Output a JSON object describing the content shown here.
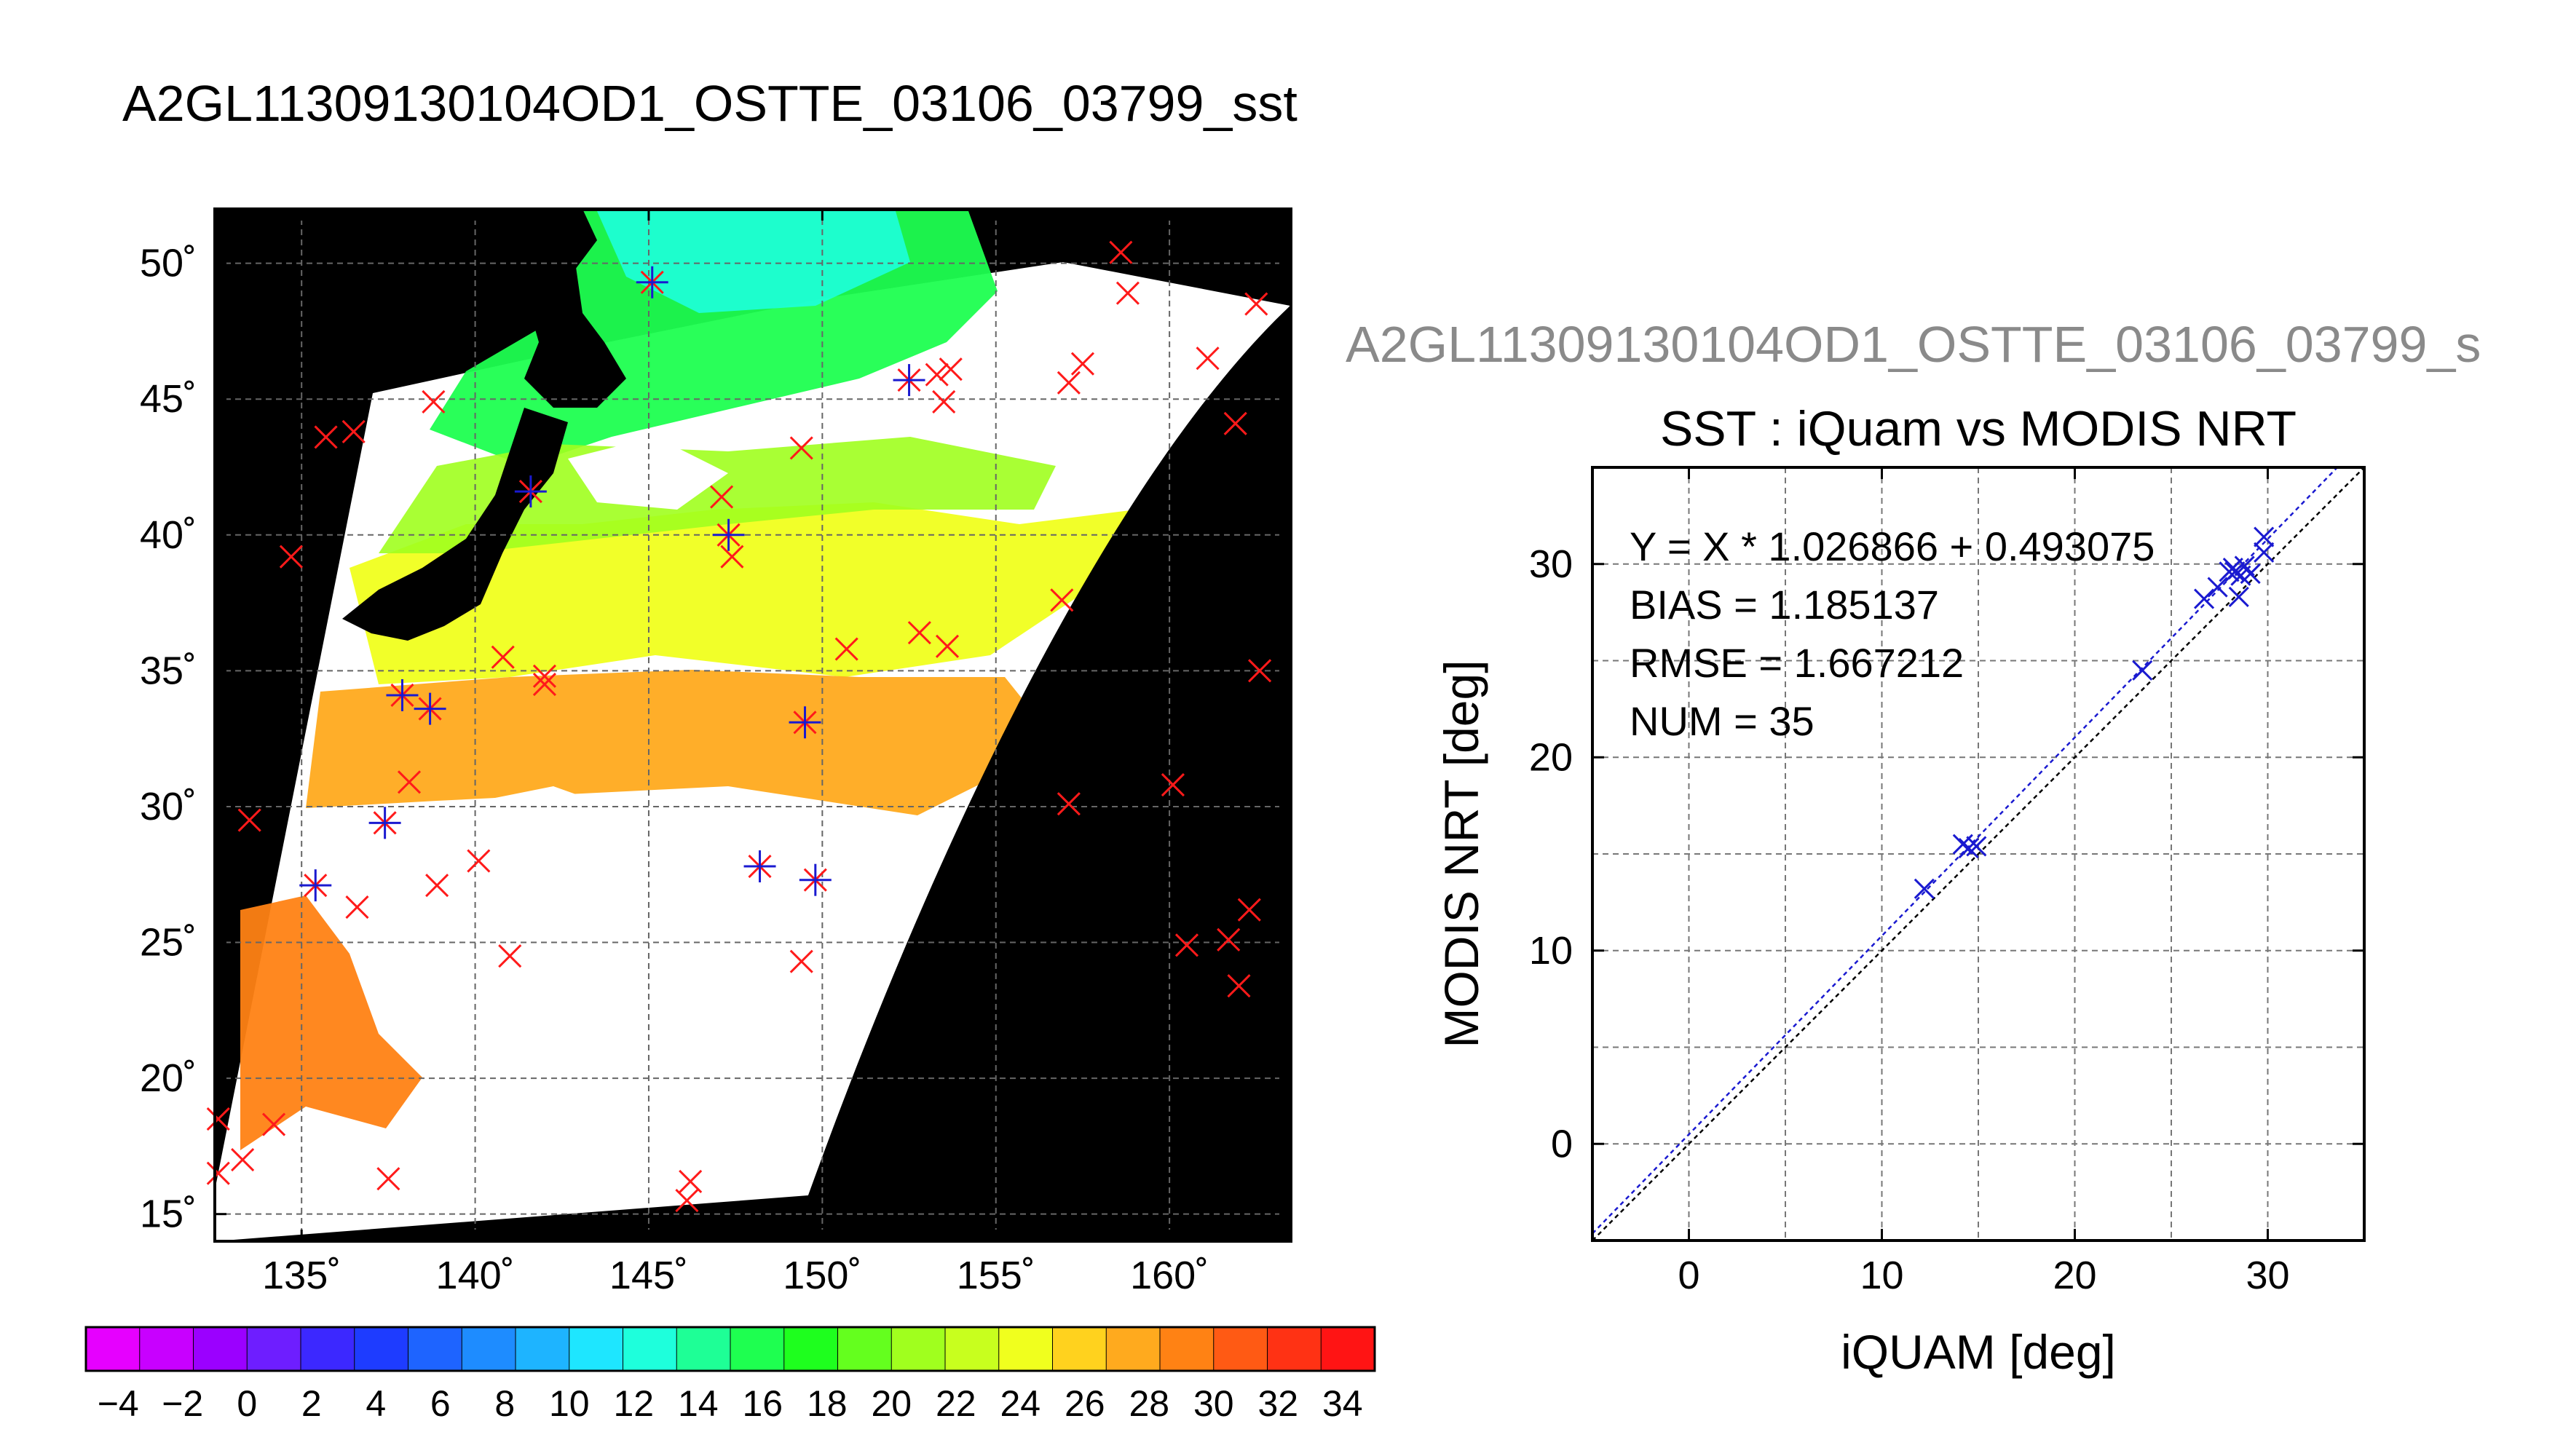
{
  "colors": {
    "background": "#ffffff",
    "land": "#000000",
    "marker_red": "#ff1a1a",
    "marker_blue": "#1a1ad0",
    "fit_line": "#1a1ad0",
    "identity_line": "#000000",
    "cloud": "#ffffff"
  },
  "chart_data": [
    {
      "type": "map",
      "title": "A2GL11309130104OD1_OSTTE_03106_03799_sst",
      "lon_ticks": [
        135,
        140,
        145,
        150,
        155,
        160
      ],
      "lat_ticks": [
        15,
        20,
        25,
        30,
        35,
        40,
        45,
        50
      ],
      "lon_tick_labels": [
        "135˚",
        "140˚",
        "145˚",
        "150˚",
        "155˚",
        "160˚"
      ],
      "lat_tick_labels": [
        "15˚",
        "20˚",
        "25˚",
        "30˚",
        "35˚",
        "40˚",
        "45˚",
        "50˚"
      ],
      "xlim": [
        132.5,
        163.5
      ],
      "ylim": [
        14,
        52
      ],
      "grid": true,
      "colorbar": {
        "tick_labels": [
          "−4",
          "−2",
          "0",
          "2",
          "4",
          "6",
          "8",
          "10",
          "12",
          "14",
          "16",
          "18",
          "20",
          "22",
          "24",
          "26",
          "28",
          "30",
          "32",
          "34"
        ],
        "range": [
          -5,
          35
        ],
        "colors": [
          "#e600ff",
          "#c800ff",
          "#9b00ff",
          "#6e1eff",
          "#3c28ff",
          "#1e3cff",
          "#1e64ff",
          "#1e8cff",
          "#1eb4ff",
          "#1ee6ff",
          "#1effdc",
          "#1eff96",
          "#1eff50",
          "#1eff1e",
          "#64ff1e",
          "#a0ff1e",
          "#c8ff1e",
          "#f0ff1e",
          "#ffd21e",
          "#ffaa1e",
          "#ff8214",
          "#ff5a14",
          "#ff3214",
          "#ff1414"
        ]
      },
      "matchups_red": [
        [
          132.6,
          18.5
        ],
        [
          133.3,
          17.0
        ],
        [
          132.6,
          16.5
        ],
        [
          134.2,
          18.3
        ],
        [
          137.5,
          16.3
        ],
        [
          133.5,
          29.5
        ],
        [
          134.7,
          39.2
        ],
        [
          135.7,
          43.6
        ],
        [
          136.5,
          43.8
        ],
        [
          138.8,
          44.9
        ],
        [
          136.6,
          26.3
        ],
        [
          138.9,
          27.1
        ],
        [
          140.1,
          28.0
        ],
        [
          141.0,
          24.5
        ],
        [
          138.1,
          30.9
        ],
        [
          140.8,
          35.5
        ],
        [
          142.0,
          34.8
        ],
        [
          142.0,
          34.5
        ],
        [
          146.1,
          15.5
        ],
        [
          146.2,
          16.2
        ],
        [
          147.1,
          41.4
        ],
        [
          147.4,
          39.2
        ],
        [
          149.4,
          43.2
        ],
        [
          149.4,
          24.3
        ],
        [
          150.7,
          35.8
        ],
        [
          152.8,
          36.4
        ],
        [
          153.6,
          35.9
        ],
        [
          153.5,
          44.9
        ],
        [
          153.7,
          46.1
        ],
        [
          153.3,
          45.9
        ],
        [
          157.1,
          45.6
        ],
        [
          157.5,
          46.3
        ],
        [
          156.9,
          37.6
        ],
        [
          157.1,
          30.1
        ],
        [
          158.6,
          50.4
        ],
        [
          158.8,
          48.9
        ],
        [
          161.1,
          46.5
        ],
        [
          161.9,
          44.1
        ],
        [
          162.5,
          48.5
        ],
        [
          160.1,
          30.8
        ],
        [
          160.5,
          24.9
        ],
        [
          161.7,
          25.1
        ],
        [
          162.3,
          26.2
        ],
        [
          162.0,
          23.4
        ],
        [
          162.6,
          35.0
        ]
      ],
      "matchups_blue": [
        [
          135.4,
          27.1
        ],
        [
          137.4,
          29.4
        ],
        [
          137.9,
          34.1
        ],
        [
          138.7,
          33.6
        ],
        [
          141.6,
          41.6
        ],
        [
          145.1,
          49.3
        ],
        [
          147.3,
          40.0
        ],
        [
          149.5,
          33.1
        ],
        [
          148.2,
          27.8
        ],
        [
          149.8,
          27.3
        ],
        [
          152.5,
          45.7
        ]
      ]
    },
    {
      "type": "scatter",
      "title": "SST : iQuam vs MODIS NRT",
      "header": "A2GL11309130104OD1_OSTTE_03106_03799_s",
      "xlabel": "iQUAM [deg]",
      "ylabel": "MODIS NRT [deg]",
      "xlim": [
        -5,
        35
      ],
      "ylim": [
        -5,
        35
      ],
      "xticks": [
        0,
        10,
        20,
        30
      ],
      "yticks": [
        0,
        10,
        20,
        30
      ],
      "grid": true,
      "annotations": [
        "Y = X * 1.026866 + 0.493075",
        "BIAS = 1.185137",
        "RMSE = 1.667212",
        "NUM = 35"
      ],
      "fit": {
        "slope": 1.026866,
        "intercept": 0.493075
      },
      "points": [
        [
          12.2,
          13.2
        ],
        [
          14.2,
          15.5
        ],
        [
          14.5,
          15.3
        ],
        [
          14.9,
          15.4
        ],
        [
          23.5,
          24.5
        ],
        [
          26.7,
          28.2
        ],
        [
          27.4,
          28.8
        ],
        [
          28.0,
          29.6
        ],
        [
          28.2,
          29.8
        ],
        [
          28.3,
          29.6
        ],
        [
          28.5,
          28.3
        ],
        [
          28.6,
          29.4
        ],
        [
          28.8,
          29.9
        ],
        [
          29.1,
          29.5
        ],
        [
          29.8,
          30.6
        ],
        [
          29.8,
          31.4
        ]
      ]
    }
  ]
}
